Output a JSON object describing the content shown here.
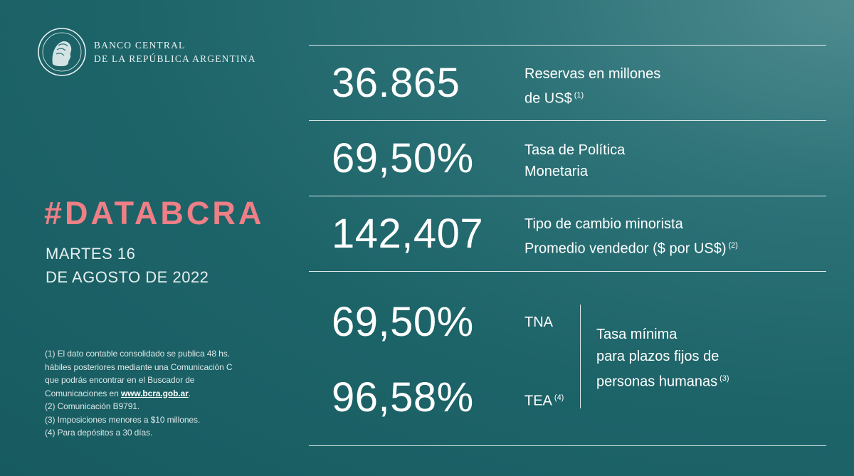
{
  "bank": {
    "line1": "BANCO CENTRAL",
    "line2": "DE LA REPÚBLICA ARGENTINA"
  },
  "hashtag": "#DATABCRA",
  "date": {
    "line1": "MARTES 16",
    "line2": "DE AGOSTO DE 2022"
  },
  "footnotes": {
    "n1_a": "(1) El dato contable consolidado se publica 48 hs.",
    "n1_b": "hábiles posteriores mediante una Comunicación C",
    "n1_c": "que podrás encontrar en el Buscador de",
    "n1_d": "Comunicaciones en ",
    "n1_link": "www.bcra.gob.ar",
    "n1_end": ".",
    "n2": "(2) Comunicación B9791.",
    "n3": "(3) Imposiciones menores a $10 millones.",
    "n4": "(4) Para depósitos a 30 días."
  },
  "indicators": {
    "reserves": {
      "value": "36.865",
      "label_line1": "Reservas en millones",
      "label_line2": "de US$",
      "note": "(1)"
    },
    "policy_rate": {
      "value": "69,50%",
      "label_line1": "Tasa de Política",
      "label_line2": "Monetaria"
    },
    "exchange_rate": {
      "value": "142,407",
      "label_line1": "Tipo de cambio minorista",
      "label_line2": "Promedio vendedor ($ por US$)",
      "note": "(2)"
    },
    "fixed_term": {
      "tna_value": "69,50%",
      "tna_label": "TNA",
      "tea_value": "96,58%",
      "tea_label": "TEA",
      "tea_note": "(4)",
      "desc_line1": "Tasa mínima",
      "desc_line2": "para plazos fijos de",
      "desc_line3": "personas humanas",
      "desc_note": "(3)"
    }
  }
}
